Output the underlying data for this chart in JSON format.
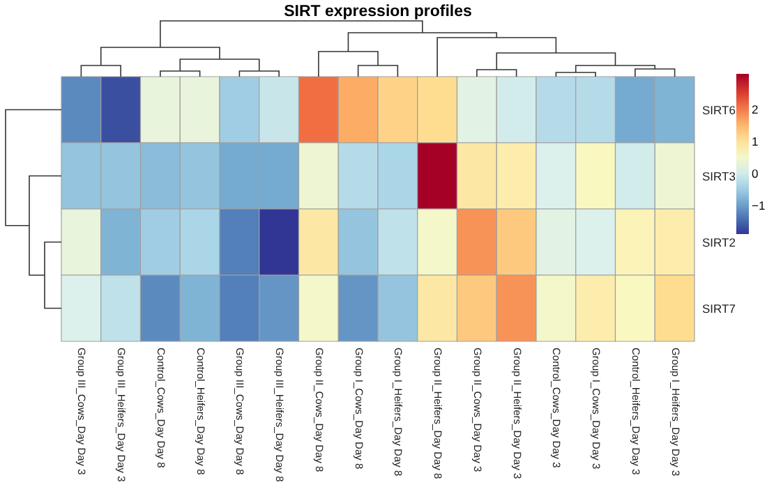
{
  "chart_data": {
    "type": "heatmap",
    "title": "SIRT expression profiles",
    "categories": [
      "Group III_Cows_Day Day 3",
      "Group III_Heifers_Day Day 3",
      "Control_Cows_Day Day 8",
      "Control_Heifers_Day Day 8",
      "Group III_Cows_Day Day 8",
      "Group III_Heifers_Day Day 8",
      "Group II_Cows_Day Day 8",
      "Group I_Cows_Day Day 8",
      "Group I_Heifers_Day Day 8",
      "Group II_Heifers_Day Day 8",
      "Group II_Cows_Day Day 3",
      "Group II_Heifers_Day Day 3",
      "Control_Cows_Day Day 3",
      "Group I_Cows_Day Day 3",
      "Control_Heifers_Day Day 3",
      "Group I_Heifers_Day Day 3"
    ],
    "y_categories": [
      "SIRT6",
      "SIRT3",
      "SIRT2",
      "SIRT7"
    ],
    "cells": [
      [
        -1.2,
        -1.7,
        0.3,
        0.3,
        -0.5,
        -0.1,
        2.1,
        1.6,
        1.2,
        1.1,
        0.2,
        0.0,
        -0.3,
        -0.3,
        -0.9,
        -0.8
      ],
      [
        -0.6,
        -0.6,
        -0.7,
        -0.6,
        -0.9,
        -0.9,
        0.4,
        -0.3,
        -0.4,
        3.1,
        0.9,
        0.8,
        0.1,
        0.6,
        0.0,
        0.4
      ],
      [
        0.3,
        -0.8,
        -0.5,
        -0.4,
        -1.3,
        -1.9,
        0.9,
        -0.6,
        -0.2,
        0.5,
        1.8,
        1.3,
        0.2,
        0.1,
        0.7,
        0.8
      ],
      [
        0.1,
        -0.2,
        -1.2,
        -0.8,
        -1.3,
        -1.1,
        0.5,
        -1.1,
        -0.6,
        0.9,
        1.3,
        1.8,
        0.5,
        0.8,
        0.6,
        1.1
      ]
    ],
    "clim": [
      -1.9,
      3.1
    ],
    "cticks": [
      -1,
      0,
      1,
      2
    ]
  }
}
